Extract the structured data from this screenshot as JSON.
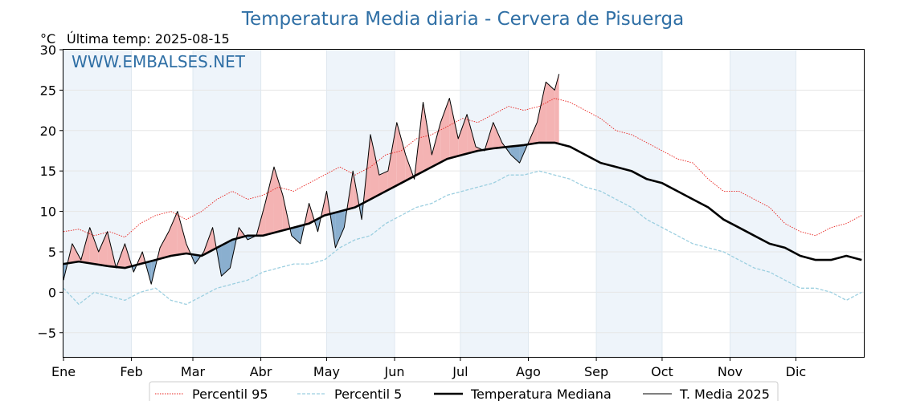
{
  "chart_data": {
    "type": "line",
    "title": "Temperatura Media diaria - Cervera de Pisuerga",
    "unit_label": "°C",
    "subtitle": "Última temp: 2025-08-15",
    "watermark": "WWW.EMBALSES.NET",
    "ylim": [
      -8,
      30
    ],
    "yticks": [
      -5,
      0,
      5,
      10,
      15,
      20,
      25,
      30
    ],
    "xlim": [
      0,
      365
    ],
    "month_labels": [
      "Ene",
      "Feb",
      "Mar",
      "Abr",
      "May",
      "Jun",
      "Jul",
      "Ago",
      "Sep",
      "Oct",
      "Nov",
      "Dic"
    ],
    "month_starts": [
      0,
      31,
      59,
      90,
      120,
      151,
      181,
      212,
      243,
      273,
      304,
      334
    ],
    "grid": true,
    "legend_position": "bottom",
    "colors": {
      "p95": "#e8231f",
      "p5": "#9ccfe0",
      "median": "#000000",
      "year": "#000000",
      "above_fill": "#f4b3b3",
      "below_fill": "#8aafcf",
      "band": "#eef4fa",
      "title": "#2f6fa5"
    },
    "series": [
      {
        "name": "Percentil 95",
        "style": "dotted",
        "x": [
          0,
          7,
          14,
          21,
          28,
          35,
          42,
          49,
          56,
          63,
          70,
          77,
          84,
          91,
          98,
          105,
          112,
          119,
          126,
          133,
          140,
          147,
          154,
          161,
          168,
          175,
          182,
          189,
          196,
          203,
          210,
          217,
          224,
          231,
          238,
          245,
          252,
          259,
          266,
          273,
          280,
          287,
          294,
          301,
          308,
          315,
          322,
          329,
          336,
          343,
          350,
          357,
          364
        ],
        "values": [
          7.5,
          7.8,
          7.0,
          7.5,
          6.8,
          8.5,
          9.5,
          10.0,
          9.0,
          10.0,
          11.5,
          12.5,
          11.5,
          12.0,
          13.0,
          12.5,
          13.5,
          14.5,
          15.5,
          14.5,
          15.5,
          17.0,
          17.5,
          19.0,
          19.5,
          20.5,
          21.5,
          21.0,
          22.0,
          23.0,
          22.5,
          23.0,
          24.0,
          23.5,
          22.5,
          21.5,
          20.0,
          19.5,
          18.5,
          17.5,
          16.5,
          16.0,
          14.0,
          12.5,
          12.5,
          11.5,
          10.5,
          8.5,
          7.5,
          7.0,
          8.0,
          8.5,
          9.5
        ]
      },
      {
        "name": "Percentil 5",
        "style": "dashed",
        "x": [
          0,
          7,
          14,
          21,
          28,
          35,
          42,
          49,
          56,
          63,
          70,
          77,
          84,
          91,
          98,
          105,
          112,
          119,
          126,
          133,
          140,
          147,
          154,
          161,
          168,
          175,
          182,
          189,
          196,
          203,
          210,
          217,
          224,
          231,
          238,
          245,
          252,
          259,
          266,
          273,
          280,
          287,
          294,
          301,
          308,
          315,
          322,
          329,
          336,
          343,
          350,
          357,
          364
        ],
        "values": [
          0.5,
          -1.5,
          0.0,
          -0.5,
          -1.0,
          0.0,
          0.5,
          -1.0,
          -1.5,
          -0.5,
          0.5,
          1.0,
          1.5,
          2.5,
          3.0,
          3.5,
          3.5,
          4.0,
          5.5,
          6.5,
          7.0,
          8.5,
          9.5,
          10.5,
          11.0,
          12.0,
          12.5,
          13.0,
          13.5,
          14.5,
          14.5,
          15.0,
          14.5,
          14.0,
          13.0,
          12.5,
          11.5,
          10.5,
          9.0,
          8.0,
          7.0,
          6.0,
          5.5,
          5.0,
          4.0,
          3.0,
          2.5,
          1.5,
          0.5,
          0.5,
          0.0,
          -1.0,
          0.0
        ]
      },
      {
        "name": "Temperatura Mediana",
        "style": "solid-thick",
        "x": [
          0,
          7,
          14,
          21,
          28,
          35,
          42,
          49,
          56,
          63,
          70,
          77,
          84,
          91,
          98,
          105,
          112,
          119,
          126,
          133,
          140,
          147,
          154,
          161,
          168,
          175,
          182,
          189,
          196,
          203,
          210,
          217,
          224,
          231,
          238,
          245,
          252,
          259,
          266,
          273,
          280,
          287,
          294,
          301,
          308,
          315,
          322,
          329,
          336,
          343,
          350,
          357,
          364
        ],
        "values": [
          3.5,
          3.8,
          3.5,
          3.2,
          3.0,
          3.5,
          4.0,
          4.5,
          4.8,
          4.5,
          5.5,
          6.5,
          7.0,
          7.0,
          7.5,
          8.0,
          8.5,
          9.5,
          10.0,
          10.5,
          11.5,
          12.5,
          13.5,
          14.5,
          15.5,
          16.5,
          17.0,
          17.5,
          17.8,
          18.0,
          18.2,
          18.5,
          18.5,
          18.0,
          17.0,
          16.0,
          15.5,
          15.0,
          14.0,
          13.5,
          12.5,
          11.5,
          10.5,
          9.0,
          8.0,
          7.0,
          6.0,
          5.5,
          4.5,
          4.0,
          4.0,
          4.5,
          4.0
        ]
      },
      {
        "name": "T. Media 2025",
        "style": "solid-thin",
        "x": [
          0,
          4,
          8,
          12,
          16,
          20,
          24,
          28,
          32,
          36,
          40,
          44,
          48,
          52,
          56,
          60,
          64,
          68,
          72,
          76,
          80,
          84,
          88,
          92,
          96,
          100,
          104,
          108,
          112,
          116,
          120,
          124,
          128,
          132,
          136,
          140,
          144,
          148,
          152,
          156,
          160,
          164,
          168,
          172,
          176,
          180,
          184,
          188,
          192,
          196,
          200,
          204,
          208,
          212,
          216,
          220,
          224,
          226
        ],
        "values": [
          1.5,
          6.0,
          4.0,
          8.0,
          5.0,
          7.5,
          3.0,
          6.0,
          2.5,
          5.0,
          1.0,
          5.5,
          7.5,
          10.0,
          6.0,
          3.5,
          5.0,
          8.0,
          2.0,
          3.0,
          8.0,
          6.5,
          7.0,
          11.0,
          15.5,
          12.0,
          7.0,
          6.0,
          11.0,
          7.5,
          12.5,
          5.5,
          8.0,
          15.0,
          9.0,
          19.5,
          14.5,
          15.0,
          21.0,
          17.0,
          14.0,
          23.5,
          17.0,
          21.0,
          24.0,
          19.0,
          22.0,
          18.0,
          17.5,
          21.0,
          18.5,
          17.0,
          16.0,
          18.5,
          21.0,
          26.0,
          25.0,
          27.0
        ]
      }
    ]
  }
}
